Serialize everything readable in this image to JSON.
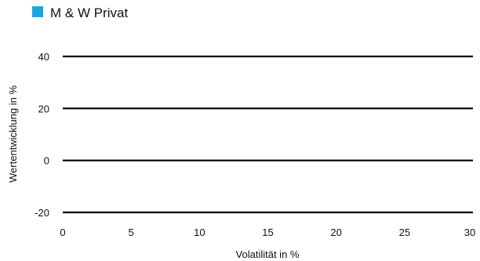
{
  "chart_data": {
    "type": "scatter",
    "title": "",
    "legend": {
      "position": "top-left",
      "entries": [
        {
          "name": "M & W Privat",
          "color": "#1ca6e0"
        }
      ]
    },
    "series": [
      {
        "name": "M & W Privat",
        "color": "#1ca6e0",
        "points": []
      }
    ],
    "xlabel": "Volatilität in %",
    "ylabel": "Wertentwicklung in %",
    "xlim": [
      0,
      30
    ],
    "ylim": [
      -20,
      40
    ],
    "x_ticks": [
      0,
      5,
      10,
      15,
      20,
      25,
      30
    ],
    "y_ticks": [
      40,
      20,
      0,
      -20
    ],
    "grid": {
      "horizontal": true,
      "vertical": false
    }
  }
}
